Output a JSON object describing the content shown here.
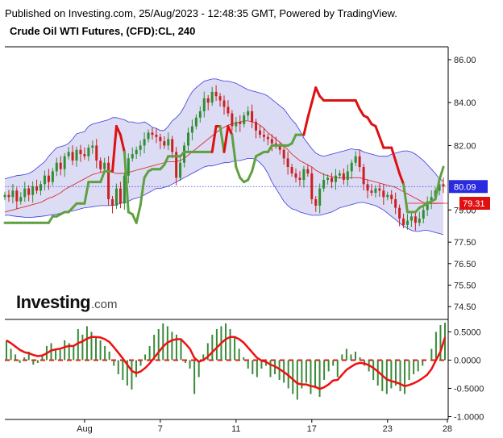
{
  "header": {
    "published": "Published on Investing.com, 25/Aug/2023 - 12:48:35 GMT, Powered by TradingView.",
    "title": "Crude Oil WTI Futures, (CFD):CL, 240"
  },
  "logo": {
    "word": "Investing",
    "suffix": ".com"
  },
  "colors": {
    "band_fill": "#dcdcf5",
    "band_line": "#3a3ae0",
    "ma_line": "#d83030",
    "price_line": "#3a3ae0",
    "up_candle": "#2f8f2f",
    "down_candle": "#cc2020",
    "stop_up": "#5fa040",
    "stop_down": "#dd1111",
    "osc_red": "#ee1111",
    "osc_bar": "#3a8a3a",
    "badge_blue": "#2a2ae0",
    "badge_red": "#e01010"
  },
  "chart_data": [
    {
      "type": "candlestick",
      "title": "Crude Oil WTI Futures, (CFD):CL, 240",
      "ylim": [
        73.9,
        86.6
      ],
      "y_ticks": [
        "86.00",
        "84.00",
        "82.00",
        "80.09",
        "79.00",
        "77.50",
        "76.50",
        "75.50",
        "74.50"
      ],
      "y_tick_values": [
        86.0,
        84.0,
        82.0,
        80.09,
        79.0,
        77.5,
        76.5,
        75.5,
        74.5
      ],
      "x_ticks": [
        "Aug",
        "7",
        "11",
        "17",
        "23",
        "28"
      ],
      "x_tick_index": [
        20,
        39,
        58,
        77,
        96,
        111
      ],
      "current_price_label": "80.09",
      "current_price": 80.09,
      "ma_label": "79.31",
      "ma_value": 79.31,
      "closes": [
        79.7,
        79.6,
        79.9,
        79.4,
        79.6,
        80.0,
        79.7,
        80.1,
        79.9,
        80.2,
        80.6,
        80.3,
        80.8,
        81.2,
        80.9,
        81.5,
        81.7,
        81.3,
        81.8,
        81.6,
        81.5,
        81.9,
        82.0,
        81.3,
        80.9,
        81.2,
        79.5,
        79.2,
        80.0,
        79.3,
        80.6,
        81.4,
        81.6,
        81.8,
        82.0,
        82.3,
        82.6,
        82.5,
        82.4,
        82.2,
        82.0,
        82.3,
        81.7,
        80.5,
        81.2,
        82.0,
        82.6,
        82.9,
        83.3,
        83.6,
        84.2,
        84.0,
        84.5,
        84.3,
        84.1,
        83.8,
        83.5,
        82.9,
        83.1,
        83.0,
        83.4,
        83.6,
        83.1,
        82.7,
        82.5,
        82.4,
        82.3,
        82.1,
        82.0,
        81.8,
        81.4,
        81.0,
        80.7,
        80.5,
        80.4,
        80.9,
        80.7,
        79.5,
        79.2,
        80.0,
        80.4,
        80.5,
        80.3,
        80.6,
        80.7,
        80.4,
        80.8,
        81.2,
        81.5,
        81.0,
        80.2,
        79.9,
        79.8,
        80.0,
        79.9,
        79.6,
        79.7,
        79.5,
        79.1,
        78.6,
        78.3,
        78.5,
        78.7,
        78.4,
        78.6,
        79.0,
        79.4,
        79.6,
        79.9,
        80.2,
        80.09
      ],
      "band_upper": [
        80.45,
        80.5,
        80.55,
        80.6,
        80.62,
        80.65,
        80.7,
        80.8,
        80.95,
        81.1,
        81.25,
        81.5,
        81.7,
        81.9,
        81.95,
        82.0,
        82.1,
        82.3,
        82.55,
        82.6,
        82.65,
        82.9,
        83.0,
        83.05,
        83.1,
        83.15,
        83.2,
        83.3,
        83.3,
        83.25,
        83.2,
        83.1,
        83.1,
        83.05,
        83.05,
        83.1,
        83.0,
        82.85,
        82.8,
        82.7,
        82.7,
        82.9,
        83.15,
        83.3,
        83.5,
        83.8,
        84.2,
        84.5,
        84.7,
        84.85,
        85.0,
        85.05,
        85.1,
        85.1,
        85.05,
        85.0,
        85.0,
        84.95,
        84.9,
        84.8,
        84.7,
        84.6,
        84.55,
        84.5,
        84.45,
        84.4,
        84.3,
        84.15,
        84.0,
        83.85,
        83.7,
        83.45,
        83.2,
        83.0,
        82.7,
        82.35,
        82.1,
        81.85,
        81.65,
        81.55,
        81.5,
        81.55,
        81.6,
        81.65,
        81.7,
        81.75,
        81.8,
        81.85,
        81.8,
        81.8,
        81.7,
        81.65,
        81.6,
        81.55,
        81.5,
        81.5,
        81.5,
        81.6,
        81.65,
        81.7,
        81.75,
        81.75,
        81.7,
        81.6,
        81.45,
        81.3,
        81.1,
        80.9,
        80.7,
        80.45,
        80.35
      ],
      "band_lower": [
        78.75,
        78.75,
        78.72,
        78.7,
        78.68,
        78.66,
        78.65,
        78.66,
        78.68,
        78.7,
        78.72,
        78.75,
        78.78,
        78.8,
        78.85,
        78.9,
        78.92,
        78.95,
        79.0,
        79.05,
        79.1,
        79.12,
        79.15,
        79.18,
        79.2,
        79.2,
        79.2,
        79.2,
        79.25,
        79.3,
        79.35,
        79.4,
        79.5,
        79.55,
        79.6,
        79.7,
        79.8,
        79.9,
        80.0,
        80.0,
        80.05,
        80.1,
        80.2,
        80.3,
        80.4,
        80.5,
        80.6,
        80.7,
        80.8,
        80.9,
        81.0,
        81.05,
        81.05,
        81.1,
        81.15,
        81.2,
        81.2,
        81.25,
        81.3,
        81.3,
        81.35,
        81.4,
        81.4,
        81.35,
        81.2,
        81.0,
        80.7,
        80.3,
        80.0,
        79.7,
        79.4,
        79.2,
        79.05,
        79.0,
        78.9,
        78.85,
        78.8,
        78.75,
        78.75,
        78.75,
        78.8,
        78.85,
        78.9,
        79.0,
        79.1,
        79.15,
        79.2,
        79.25,
        79.3,
        79.35,
        79.35,
        79.3,
        79.25,
        79.2,
        79.1,
        79.0,
        78.85,
        78.7,
        78.55,
        78.4,
        78.25,
        78.15,
        78.05,
        78.0,
        78.0,
        78.05,
        78.05,
        78.0,
        77.95,
        77.9,
        77.85
      ],
      "ma": [
        78.9,
        78.95,
        79.0,
        79.05,
        79.1,
        79.15,
        79.2,
        79.25,
        79.3,
        79.35,
        79.45,
        79.55,
        79.6,
        79.7,
        79.8,
        79.95,
        80.05,
        80.15,
        80.25,
        80.35,
        80.45,
        80.55,
        80.65,
        80.7,
        80.75,
        80.8,
        80.8,
        80.75,
        80.7,
        80.7,
        80.7,
        80.75,
        80.8,
        80.85,
        80.9,
        80.95,
        81.0,
        81.05,
        81.1,
        81.15,
        81.2,
        81.25,
        81.25,
        81.25,
        81.3,
        81.4,
        81.55,
        81.7,
        81.85,
        82.0,
        82.15,
        82.3,
        82.45,
        82.6,
        82.75,
        82.85,
        82.95,
        83.0,
        83.05,
        83.1,
        83.15,
        83.15,
        83.1,
        83.05,
        82.95,
        82.8,
        82.6,
        82.45,
        82.3,
        82.15,
        82.0,
        81.8,
        81.6,
        81.45,
        81.3,
        81.2,
        81.1,
        81.0,
        80.85,
        80.75,
        80.65,
        80.6,
        80.55,
        80.5,
        80.5,
        80.5,
        80.5,
        80.5,
        80.5,
        80.5,
        80.45,
        80.4,
        80.35,
        80.3,
        80.25,
        80.2,
        80.15,
        80.1,
        80.05,
        79.95,
        79.85,
        79.75,
        79.65,
        79.55,
        79.45,
        79.35,
        79.3,
        79.3,
        79.3,
        79.31,
        79.31
      ],
      "stop": [
        78.4,
        78.4,
        78.4,
        78.4,
        78.4,
        78.4,
        78.4,
        78.4,
        78.4,
        78.4,
        78.4,
        78.4,
        78.7,
        78.7,
        78.8,
        78.9,
        78.9,
        79.1,
        79.3,
        79.3,
        79.3,
        80.3,
        80.3,
        80.3,
        80.3,
        80.8,
        80.8,
        80.8,
        82.9,
        82.5,
        81.7,
        78.9,
        78.8,
        78.4,
        79.2,
        80.5,
        80.8,
        80.9,
        80.9,
        80.9,
        81.1,
        81.5,
        81.5,
        81.5,
        81.5,
        81.7,
        81.7,
        81.7,
        81.7,
        81.7,
        81.7,
        81.7,
        81.7,
        82.9,
        82.9,
        81.7,
        82.9,
        82.5,
        81.0,
        80.5,
        80.3,
        80.4,
        80.8,
        81.5,
        81.6,
        81.7,
        81.7,
        82.0,
        82.0,
        82.0,
        82.0,
        82.0,
        82.1,
        82.5,
        82.5,
        82.5,
        83.3,
        84.0,
        84.7,
        84.3,
        84.1,
        84.1,
        84.1,
        84.1,
        84.1,
        84.1,
        84.1,
        84.1,
        84.1,
        83.7,
        83.4,
        83.3,
        83.0,
        82.9,
        82.4,
        81.9,
        81.9,
        81.9,
        81.3,
        80.7,
        80.2,
        78.9,
        78.9,
        78.9,
        79.1,
        79.2,
        79.3,
        79.4,
        79.5,
        80.4,
        81.0
      ],
      "stop_dir": [
        "up",
        "up",
        "up",
        "up",
        "up",
        "up",
        "up",
        "up",
        "up",
        "up",
        "up",
        "up",
        "up",
        "up",
        "up",
        "up",
        "up",
        "up",
        "up",
        "up",
        "up",
        "up",
        "up",
        "up",
        "up",
        "up",
        "up",
        "up",
        "down",
        "down",
        "down",
        "up",
        "up",
        "up",
        "up",
        "up",
        "up",
        "up",
        "up",
        "up",
        "up",
        "up",
        "up",
        "up",
        "up",
        "up",
        "up",
        "up",
        "up",
        "up",
        "up",
        "up",
        "up",
        "down",
        "down",
        "up",
        "down",
        "down",
        "up",
        "up",
        "up",
        "up",
        "up",
        "up",
        "up",
        "up",
        "up",
        "up",
        "up",
        "up",
        "up",
        "up",
        "up",
        "up",
        "up",
        "up",
        "down",
        "down",
        "down",
        "down",
        "down",
        "down",
        "down",
        "down",
        "down",
        "down",
        "down",
        "down",
        "down",
        "down",
        "down",
        "down",
        "down",
        "down",
        "down",
        "down",
        "down",
        "down",
        "down",
        "down",
        "down",
        "up",
        "up",
        "up",
        "up",
        "up",
        "up",
        "up",
        "up",
        "up",
        "up"
      ]
    },
    {
      "type": "bar",
      "title": "",
      "ylim": [
        -1.05,
        0.72
      ],
      "y_ticks": [
        "0.5000",
        "0.0000",
        "-0.5000",
        "-1.0000"
      ],
      "y_tick_values": [
        0.5,
        0.0,
        -0.5,
        -1.0
      ],
      "histogram": [
        0.35,
        0.2,
        0.1,
        -0.05,
        0.05,
        0.15,
        -0.08,
        -0.05,
        0.08,
        0.25,
        0.3,
        0.2,
        0.18,
        0.35,
        0.3,
        0.25,
        0.55,
        0.45,
        0.6,
        0.5,
        0.4,
        0.35,
        0.25,
        0.15,
        -0.1,
        -0.25,
        -0.35,
        -0.45,
        -0.52,
        -0.3,
        -0.1,
        0.1,
        0.25,
        0.45,
        0.55,
        0.65,
        0.6,
        0.5,
        0.45,
        0.35,
        -0.05,
        -0.15,
        -0.6,
        -0.3,
        0.1,
        0.3,
        0.45,
        0.55,
        0.6,
        0.65,
        0.55,
        0.4,
        0.2,
        0.05,
        -0.15,
        -0.25,
        -0.3,
        -0.15,
        -0.1,
        -0.3,
        -0.25,
        -0.35,
        -0.4,
        -0.5,
        -0.6,
        -0.7,
        -0.5,
        -0.4,
        -0.6,
        -0.5,
        -0.65,
        -0.35,
        -0.2,
        -0.1,
        -0.3,
        0.1,
        0.2,
        0.1,
        0.15,
        0.05,
        -0.1,
        -0.2,
        -0.35,
        -0.45,
        -0.55,
        -0.6,
        -0.5,
        -0.45,
        -0.55,
        -0.6,
        -0.35,
        -0.25,
        -0.2,
        -0.1,
        0.0,
        0.2,
        0.5,
        0.62,
        0.66
      ],
      "signal": [
        0.35,
        0.3,
        0.24,
        0.18,
        0.14,
        0.12,
        0.09,
        0.07,
        0.08,
        0.12,
        0.17,
        0.19,
        0.2,
        0.23,
        0.25,
        0.25,
        0.3,
        0.33,
        0.38,
        0.41,
        0.41,
        0.4,
        0.37,
        0.32,
        0.23,
        0.13,
        0.03,
        -0.08,
        -0.19,
        -0.23,
        -0.2,
        -0.14,
        -0.06,
        0.04,
        0.14,
        0.24,
        0.31,
        0.35,
        0.37,
        0.37,
        0.29,
        0.2,
        0.04,
        -0.03,
        0.0,
        0.06,
        0.14,
        0.22,
        0.3,
        0.37,
        0.41,
        0.41,
        0.37,
        0.31,
        0.22,
        0.13,
        0.04,
        -0.01,
        -0.03,
        -0.08,
        -0.11,
        -0.16,
        -0.21,
        -0.27,
        -0.34,
        -0.41,
        -0.43,
        -0.43,
        -0.46,
        -0.47,
        -0.51,
        -0.48,
        -0.43,
        -0.36,
        -0.35,
        -0.26,
        -0.17,
        -0.12,
        -0.07,
        -0.05,
        -0.06,
        -0.09,
        -0.14,
        -0.2,
        -0.27,
        -0.34,
        -0.37,
        -0.39,
        -0.42,
        -0.46,
        -0.44,
        -0.41,
        -0.37,
        -0.32,
        -0.26,
        -0.16,
        0.0,
        0.15,
        0.4
      ]
    }
  ]
}
